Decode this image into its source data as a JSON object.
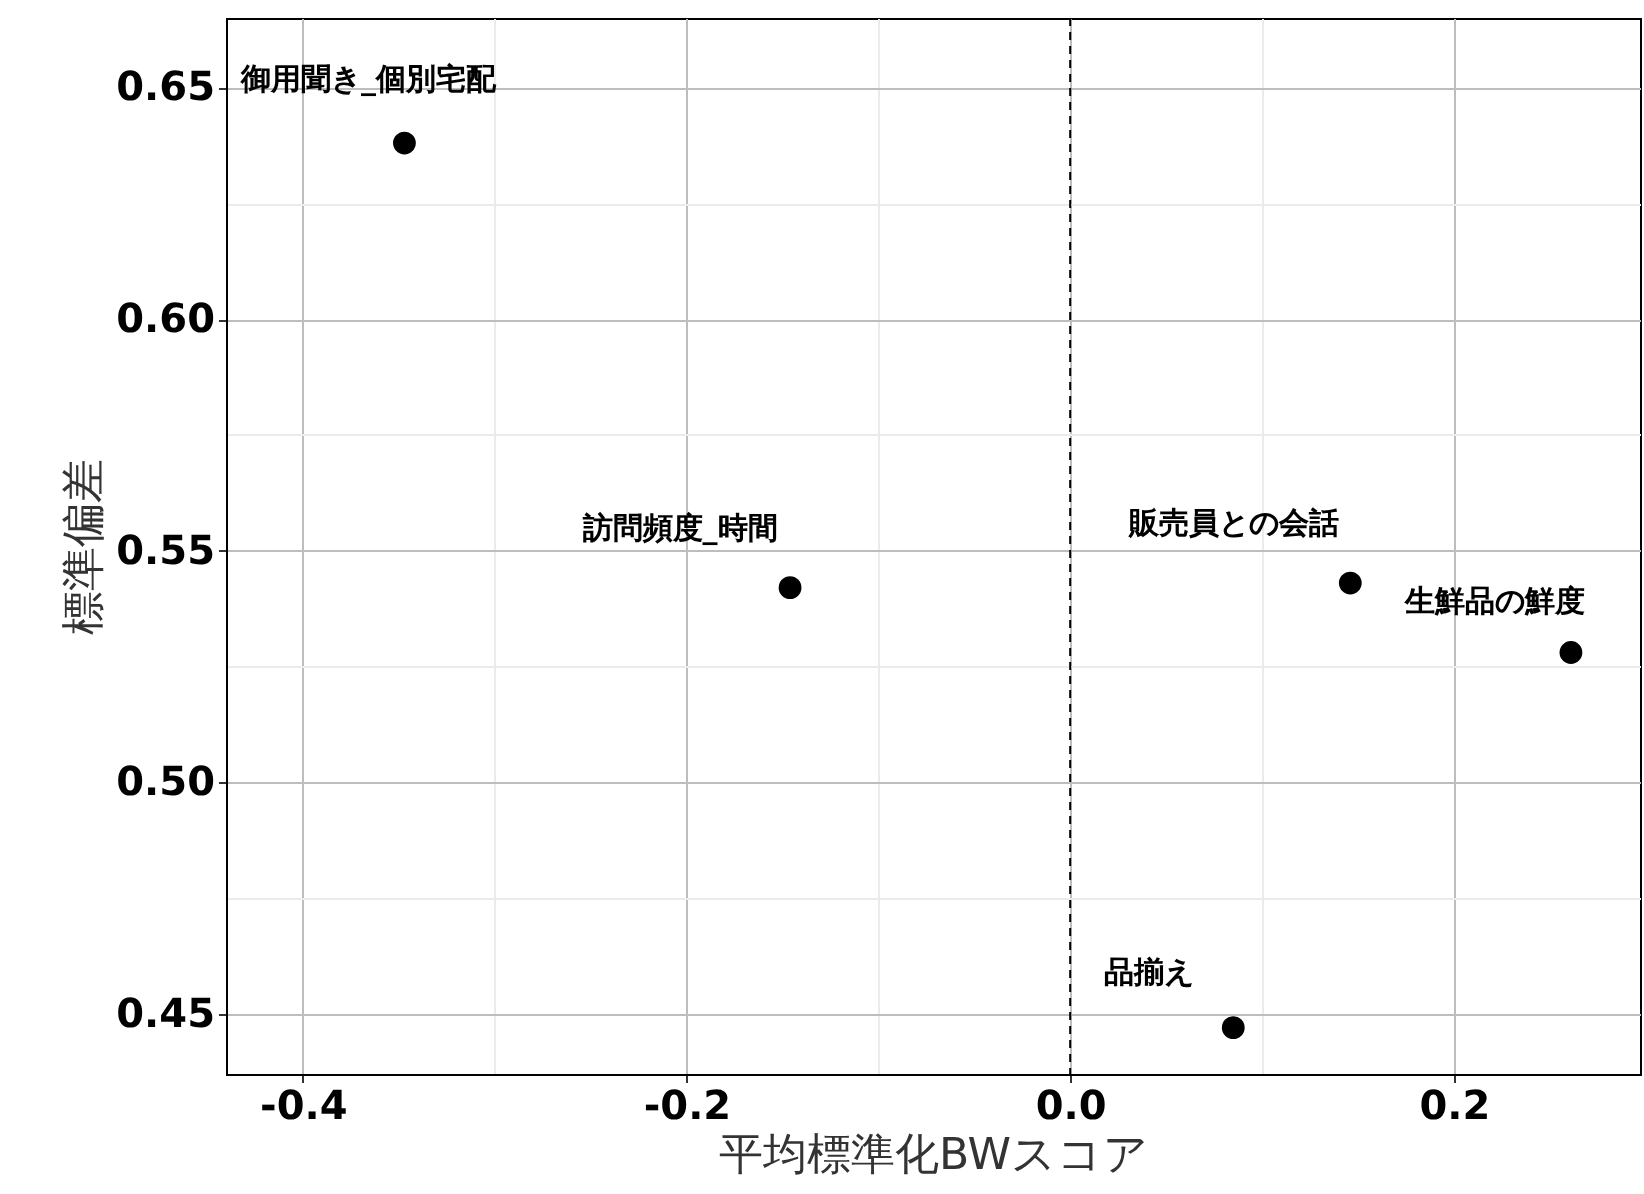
{
  "chart_data": {
    "type": "scatter",
    "xlabel": "平均標準化BWスコア",
    "ylabel": "標準偏差",
    "series": [
      {
        "name": "御用聞き_個別宅配",
        "color": "#000000",
        "x": [
          -0.347
        ],
        "values": [
          0.638
        ]
      },
      {
        "name": "訪問頻度_時間",
        "color": "#000000",
        "x": [
          -0.146
        ],
        "values": [
          0.542
        ]
      },
      {
        "name": "販売員との会話",
        "color": "#000000",
        "x": [
          0.146
        ],
        "values": [
          0.543
        ]
      },
      {
        "name": "生鮮品の鮮度",
        "color": "#000000",
        "x": [
          0.261
        ],
        "values": [
          0.528
        ]
      },
      {
        "name": "品揃え",
        "color": "#000000",
        "x": [
          0.085
        ],
        "values": [
          0.447
        ]
      }
    ],
    "xlim": [
      -0.44,
      0.297
    ],
    "ylim": [
      0.437,
      0.665
    ],
    "xticks": [
      -0.4,
      {
        "value": -0.3,
        "label": null
      },
      "-0.2",
      {
        "value": -0.1,
        "label": null
      },
      {
        "value": 0,
        "label": "0.0"
      },
      {
        "value": 0.1,
        "label": null
      },
      0.2
    ],
    "yticks": [
      {
        "value": 0.45,
        "label": "0.45"
      },
      {
        "value": 0.475,
        "label": null
      },
      {
        "value": 0.5,
        "label": "0.50"
      },
      {
        "value": 0.525,
        "label": null
      },
      {
        "value": 0.55,
        "label": "0.55"
      },
      {
        "value": 0.575,
        "label": null
      },
      {
        "value": 0.6,
        "label": "0.60"
      },
      {
        "value": 0.625,
        "label": null
      },
      {
        "value": 0.65,
        "label": "0.65"
      }
    ],
    "grid": true,
    "marker": "circle",
    "ref_lines": [
      {
        "axis": "x",
        "value": 0,
        "line_style": "dashed",
        "color": "#000000"
      }
    ]
  }
}
